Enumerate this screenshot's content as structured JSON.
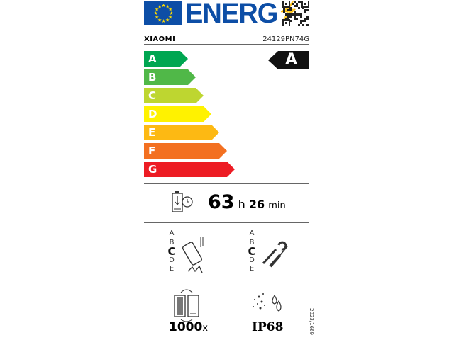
{
  "header": {
    "energy_text": "ENERG",
    "brand": "XIAOMI",
    "model": "24129PN74G"
  },
  "scale": [
    {
      "label": "A",
      "color": "#00a651"
    },
    {
      "label": "B",
      "color": "#50b848"
    },
    {
      "label": "C",
      "color": "#bed630"
    },
    {
      "label": "D",
      "color": "#fff200"
    },
    {
      "label": "E",
      "color": "#fdb913"
    },
    {
      "label": "F",
      "color": "#f37021"
    },
    {
      "label": "G",
      "color": "#ed1c24"
    }
  ],
  "energy_class": "A",
  "battery_endurance": {
    "hours": "63",
    "h_unit": "h",
    "minutes": "26",
    "min_unit": "min"
  },
  "drop_scale": {
    "letters": [
      "A",
      "B",
      "C",
      "D",
      "E"
    ],
    "selected": "C"
  },
  "repair_scale": {
    "letters": [
      "A",
      "B",
      "C",
      "D",
      "E"
    ],
    "selected": "C"
  },
  "battery_cycles": {
    "value": "1000",
    "unit": "x"
  },
  "ingress": "IP68",
  "regulation": "2023/1669"
}
